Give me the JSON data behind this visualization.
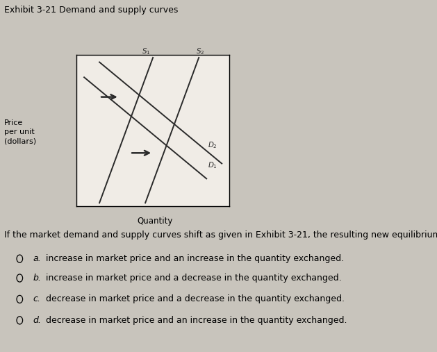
{
  "title": "Exhibit 3-21 Demand and supply curves",
  "ylabel_lines": [
    "Price",
    "per unit",
    "(dollars)"
  ],
  "xlabel": "Quantity",
  "bg_color": "#c8c4bc",
  "box_color": "#f0ece6",
  "s1_label": "$S_1$",
  "s2_label": "$S_2$",
  "d1_label": "$D_1$",
  "d2_label": "$D_2$",
  "question_text": "If the market demand and supply curves shift as given in Exhibit 3-21, the resulting new equilibrium will show a :",
  "options": [
    [
      "a.",
      "increase in market price and an increase in the quantity exchanged."
    ],
    [
      "b.",
      "increase in market price and a decrease in the quantity exchanged."
    ],
    [
      "c.",
      "decrease in market price and a decrease in the quantity exchanged."
    ],
    [
      "d.",
      "decrease in market price and an increase in the quantity exchanged."
    ]
  ],
  "line_color": "#2a2a2a",
  "arrow_color": "#2a2a2a",
  "title_fontsize": 9,
  "label_fontsize": 8,
  "option_fontsize": 9,
  "question_fontsize": 9
}
